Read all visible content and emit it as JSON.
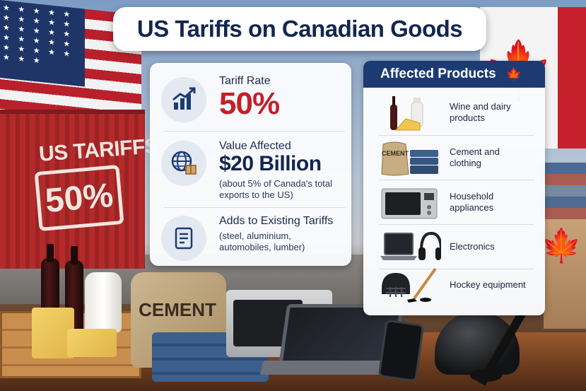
{
  "title": "US Tariffs on Canadian Goods",
  "scene": {
    "container_text": "US TARIFFS",
    "container_stamp": "50%",
    "cement_bag_text": "CEMENT"
  },
  "info_card": {
    "tariff": {
      "label": "Tariff Rate",
      "value": "50%"
    },
    "value_affected": {
      "label": "Value Affected",
      "value": "$20 Billion",
      "note_line1": "(about 5% of Canada's total",
      "note_line2": "exports to the US)"
    },
    "existing": {
      "label": "Adds to Existing Tariffs",
      "note_line1": "(steel, aluminium,",
      "note_line2": "automobiles, lumber)"
    }
  },
  "products_card": {
    "header": "Affected Products",
    "items": [
      {
        "line1": "Wine and dairy",
        "line2": "products",
        "icon": "wine-cheese-milk"
      },
      {
        "line1": "Cement and",
        "line2": "clothing",
        "icon": "cement-bag-jeans"
      },
      {
        "line1": "Household",
        "line2": "appliances",
        "icon": "microwave"
      },
      {
        "line1": "Electronics",
        "line2": "",
        "icon": "laptop-headphones"
      },
      {
        "line1": "Hockey equipment",
        "line2": "",
        "icon": "hockey-helmet-stick"
      }
    ]
  },
  "colors": {
    "navy": "#13264f",
    "header_navy": "#1c3b73",
    "tariff_red": "#c3202a"
  }
}
